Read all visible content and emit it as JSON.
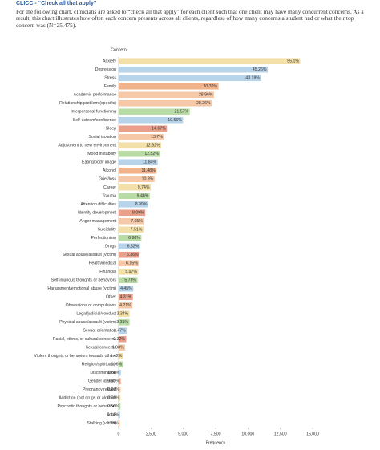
{
  "header": {
    "title": "CLICC - “Check all that apply”",
    "description": "For the following chart, clinicians are asked to “check all that apply” for each client such that one client may have many concurrent concerns. As a result, this chart illustrates how often each concern presents across all clients, regardless of how many concerns a student had or what their top concern was (N=25,475)."
  },
  "chart_data": {
    "type": "hbar",
    "y_label": "Concern",
    "x_label": "Frequency",
    "categories": [
      "Anxiety",
      "Depression",
      "Stress",
      "Family",
      "Academic performance",
      "Relationship problem (specific)",
      "Interpersonal functioning",
      "Self-esteem/confidence",
      "Sleep",
      "Social isolation",
      "Adjustment to new environment",
      "Mood instability",
      "Eating/body image",
      "Alcohol",
      "Grief/loss",
      "Career",
      "Trauma",
      "Attention difficulties",
      "Identity development",
      "Anger management",
      "Suicidality",
      "Perfectionism",
      "Drugs",
      "Sexual abuse/assault (victim)",
      "Health/medical",
      "Financial",
      "Self-injurious thoughts or behaviors",
      "Harassment/emotional abuse (victim)",
      "Other",
      "Obsessions or compulsions",
      "Legal/judicial/conduct",
      "Physical abuse/assault (victim)",
      "Sexual orientation",
      "Racial, ethnic, or cultural concerns",
      "Sexual concerns",
      "Violent thoughts or behaviors towards others",
      "Religion/spirituality",
      "Discrimination",
      "Gender identity",
      "Pregnancy related",
      "Addiction (not drugs or alcohol)",
      "Psychotic thoughts or behaviors",
      "None",
      "Stalking (victim)"
    ],
    "values": [
      14037,
      11530,
      11000,
      7724,
      7378,
      7199,
      5495,
      4983,
      3737,
      3490,
      3291,
      3189,
      3016,
      2925,
      2777,
      2481,
      2410,
      2290,
      2061,
      1949,
      1913,
      1758,
      1661,
      1620,
      1567,
      1521,
      1460,
      1134,
      1098,
      1073,
      851,
      843,
      629,
      591,
      504,
      362,
      346,
      173,
      160,
      153,
      143,
      143,
      112,
      71
    ],
    "value_labels": [
      "55.1%",
      "45.26%",
      "43.18%",
      "30.32%",
      "28.96%",
      "28.26%",
      "21.57%",
      "19.56%",
      "14.67%",
      "13.7%",
      "12.92%",
      "12.52%",
      "11.84%",
      "11.48%",
      "10.9%",
      "9.74%",
      "9.46%",
      "8.99%",
      "8.09%",
      "7.65%",
      "7.51%",
      "6.90%",
      "6.52%",
      "6.36%",
      "6.15%",
      "5.97%",
      "5.73%",
      "4.45%",
      "4.31%",
      "4.21%",
      "3.34%",
      "3.31%",
      "2.47%",
      "2.32%",
      "1.98%",
      "1.42%",
      "1.36%",
      "0.68%",
      "0.63%",
      "0.60%",
      "0.56%",
      "0.56%",
      "0.44%",
      "0.28%"
    ],
    "colors": [
      "#f3dfa8",
      "#b8d4ea",
      "#b8d4ea",
      "#f2b38a",
      "#f5c9a8",
      "#f5c9a8",
      "#b9dba5",
      "#b8d4ea",
      "#e8a08a",
      "#f5c9a8",
      "#f3dfa8",
      "#b9dba5",
      "#b8d4ea",
      "#f2b38a",
      "#f5c9a8",
      "#f3dfa8",
      "#b9dba5",
      "#b8d4ea",
      "#e8a08a",
      "#f5c9a8",
      "#f3dfa8",
      "#b9dba5",
      "#b8d4ea",
      "#e8a08a",
      "#f5c9a8",
      "#f3dfa8",
      "#b9dba5",
      "#b8d4ea",
      "#e8a08a",
      "#f5c9a8",
      "#f3dfa8",
      "#b9dba5",
      "#b8d4ea",
      "#e8a08a",
      "#f5c9a8",
      "#f3dfa8",
      "#b9dba5",
      "#b8d4ea",
      "#e8a08a",
      "#f5c9a8",
      "#f3dfa8",
      "#b9dba5",
      "#b8d4ea",
      "#e8a08a"
    ],
    "xlim": [
      0,
      15000
    ],
    "xticks": [
      0,
      {
        "value": 2500,
        "label": "2,500"
      },
      {
        "value": 5000,
        "label": "5,000"
      },
      {
        "value": 7500,
        "label": "7,500"
      },
      {
        "value": 10000,
        "label": "10,000"
      },
      {
        "value": 12500,
        "label": "12,500"
      },
      {
        "value": 15000,
        "label": "15,000"
      }
    ]
  }
}
